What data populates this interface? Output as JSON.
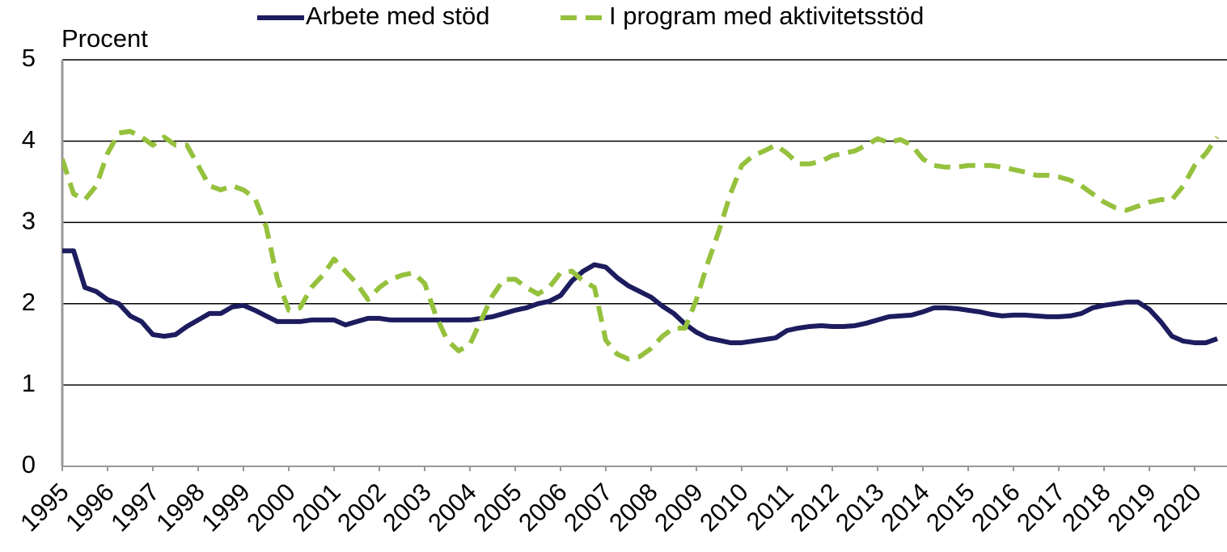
{
  "chart_data": {
    "type": "line",
    "y_label": "Procent",
    "x": [
      1995,
      1995.25,
      1995.5,
      1995.75,
      1996,
      1996.25,
      1996.5,
      1996.75,
      1997,
      1997.25,
      1997.5,
      1997.75,
      1998,
      1998.25,
      1998.5,
      1998.75,
      1999,
      1999.25,
      1999.5,
      1999.75,
      2000,
      2000.25,
      2000.5,
      2000.75,
      2001,
      2001.25,
      2001.5,
      2001.75,
      2002,
      2002.25,
      2002.5,
      2002.75,
      2003,
      2003.25,
      2003.5,
      2003.75,
      2004,
      2004.25,
      2004.5,
      2004.75,
      2005,
      2005.25,
      2005.5,
      2005.75,
      2006,
      2006.25,
      2006.5,
      2006.75,
      2007,
      2007.25,
      2007.5,
      2007.75,
      2008,
      2008.25,
      2008.5,
      2008.75,
      2009,
      2009.25,
      2009.5,
      2009.75,
      2010,
      2010.25,
      2010.5,
      2010.75,
      2011,
      2011.25,
      2011.5,
      2011.75,
      2012,
      2012.25,
      2012.5,
      2012.75,
      2013,
      2013.25,
      2013.5,
      2013.75,
      2014,
      2014.25,
      2014.5,
      2014.75,
      2015,
      2015.25,
      2015.5,
      2015.75,
      2016,
      2016.25,
      2016.5,
      2016.75,
      2017,
      2017.25,
      2017.5,
      2017.75,
      2018,
      2018.25,
      2018.5,
      2018.75,
      2019,
      2019.25,
      2019.5,
      2019.75,
      2020,
      2020.25,
      2020.5
    ],
    "series": [
      {
        "name": "Arbete med stöd",
        "color": "#1c1c5e",
        "dashed": false,
        "values": [
          2.65,
          2.65,
          2.2,
          2.15,
          2.05,
          2.0,
          1.85,
          1.78,
          1.62,
          1.6,
          1.62,
          1.72,
          1.8,
          1.88,
          1.88,
          1.96,
          1.98,
          1.92,
          1.85,
          1.78,
          1.78,
          1.78,
          1.8,
          1.8,
          1.8,
          1.74,
          1.78,
          1.82,
          1.82,
          1.8,
          1.8,
          1.8,
          1.8,
          1.8,
          1.8,
          1.8,
          1.8,
          1.82,
          1.84,
          1.88,
          1.92,
          1.95,
          2.0,
          2.03,
          2.1,
          2.28,
          2.4,
          2.48,
          2.45,
          2.32,
          2.22,
          2.15,
          2.08,
          1.97,
          1.88,
          1.75,
          1.65,
          1.58,
          1.55,
          1.52,
          1.52,
          1.54,
          1.56,
          1.58,
          1.67,
          1.7,
          1.72,
          1.73,
          1.72,
          1.72,
          1.73,
          1.76,
          1.8,
          1.84,
          1.85,
          1.86,
          1.9,
          1.95,
          1.95,
          1.94,
          1.92,
          1.9,
          1.87,
          1.85,
          1.86,
          1.86,
          1.85,
          1.84,
          1.84,
          1.85,
          1.88,
          1.95,
          1.98,
          2.0,
          2.02,
          2.02,
          1.93,
          1.78,
          1.6,
          1.54,
          1.52,
          1.52,
          1.57
        ]
      },
      {
        "name": "I program med aktivitetsstöd",
        "color": "#95c13d",
        "dashed": true,
        "values": [
          3.78,
          3.35,
          3.28,
          3.45,
          3.85,
          4.1,
          4.12,
          4.05,
          3.95,
          4.05,
          3.95,
          3.95,
          3.7,
          3.45,
          3.4,
          3.45,
          3.4,
          3.3,
          2.95,
          2.3,
          1.92,
          1.95,
          2.2,
          2.35,
          2.55,
          2.4,
          2.25,
          2.05,
          2.2,
          2.3,
          2.35,
          2.38,
          2.25,
          1.85,
          1.55,
          1.42,
          1.5,
          1.8,
          2.1,
          2.3,
          2.3,
          2.2,
          2.12,
          2.2,
          2.38,
          2.4,
          2.28,
          2.2,
          1.55,
          1.38,
          1.32,
          1.35,
          1.45,
          1.6,
          1.7,
          1.7,
          2.05,
          2.5,
          2.9,
          3.35,
          3.7,
          3.82,
          3.88,
          3.95,
          3.85,
          3.72,
          3.72,
          3.75,
          3.82,
          3.85,
          3.88,
          3.95,
          4.03,
          3.98,
          4.02,
          3.95,
          3.78,
          3.7,
          3.68,
          3.68,
          3.7,
          3.7,
          3.7,
          3.68,
          3.65,
          3.62,
          3.58,
          3.58,
          3.56,
          3.52,
          3.45,
          3.35,
          3.25,
          3.18,
          3.15,
          3.2,
          3.25,
          3.28,
          3.28,
          3.45,
          3.7,
          3.85,
          4.05
        ]
      }
    ],
    "xlim": [
      1995,
      2020.75
    ],
    "xticks": [
      1995,
      1996,
      1997,
      1998,
      1999,
      2000,
      2001,
      2002,
      2003,
      2004,
      2005,
      2006,
      2007,
      2008,
      2009,
      2010,
      2011,
      2012,
      2013,
      2014,
      2015,
      2016,
      2017,
      2018,
      2019,
      2020
    ],
    "ylim": [
      0,
      5
    ],
    "yticks": [
      0,
      1,
      2,
      3,
      4,
      5
    ],
    "grid": true,
    "legend": "top"
  }
}
